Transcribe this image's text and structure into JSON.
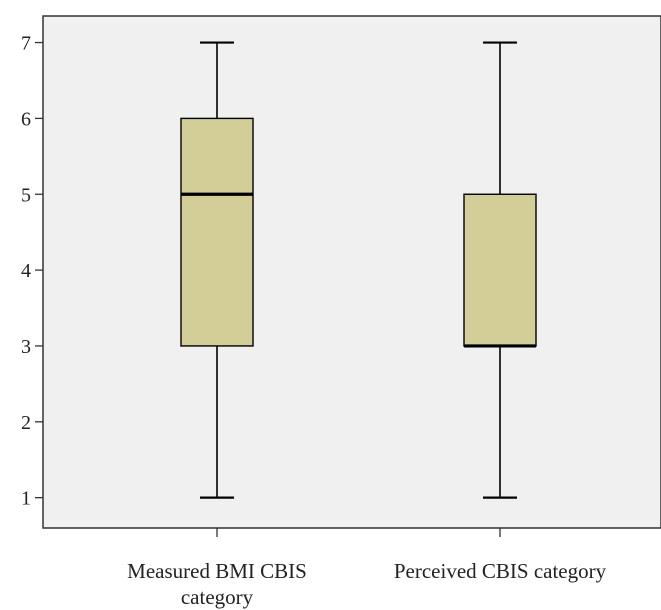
{
  "chart_data": {
    "type": "boxplot",
    "title": "",
    "xlabel": "",
    "ylabel": "",
    "ylim": [
      0.6,
      7.35
    ],
    "yticks": [
      1,
      2,
      3,
      4,
      5,
      6,
      7
    ],
    "grid": false,
    "legend": "none",
    "categories": [
      [
        "Measured BMI CBIS",
        "category"
      ],
      [
        "Perceived CBIS category"
      ]
    ],
    "boxes": [
      {
        "category": "Measured BMI CBIS category",
        "min": 1,
        "q1": 3,
        "median": 5,
        "q3": 6,
        "max": 7
      },
      {
        "category": "Perceived CBIS category",
        "min": 1,
        "q1": 3,
        "median": 3,
        "q3": 5,
        "max": 7
      }
    ],
    "colors": {
      "plot_background": "#f0f0f0",
      "box_fill": "#d3ce97",
      "line": "#000000",
      "frame": "#333333"
    }
  }
}
